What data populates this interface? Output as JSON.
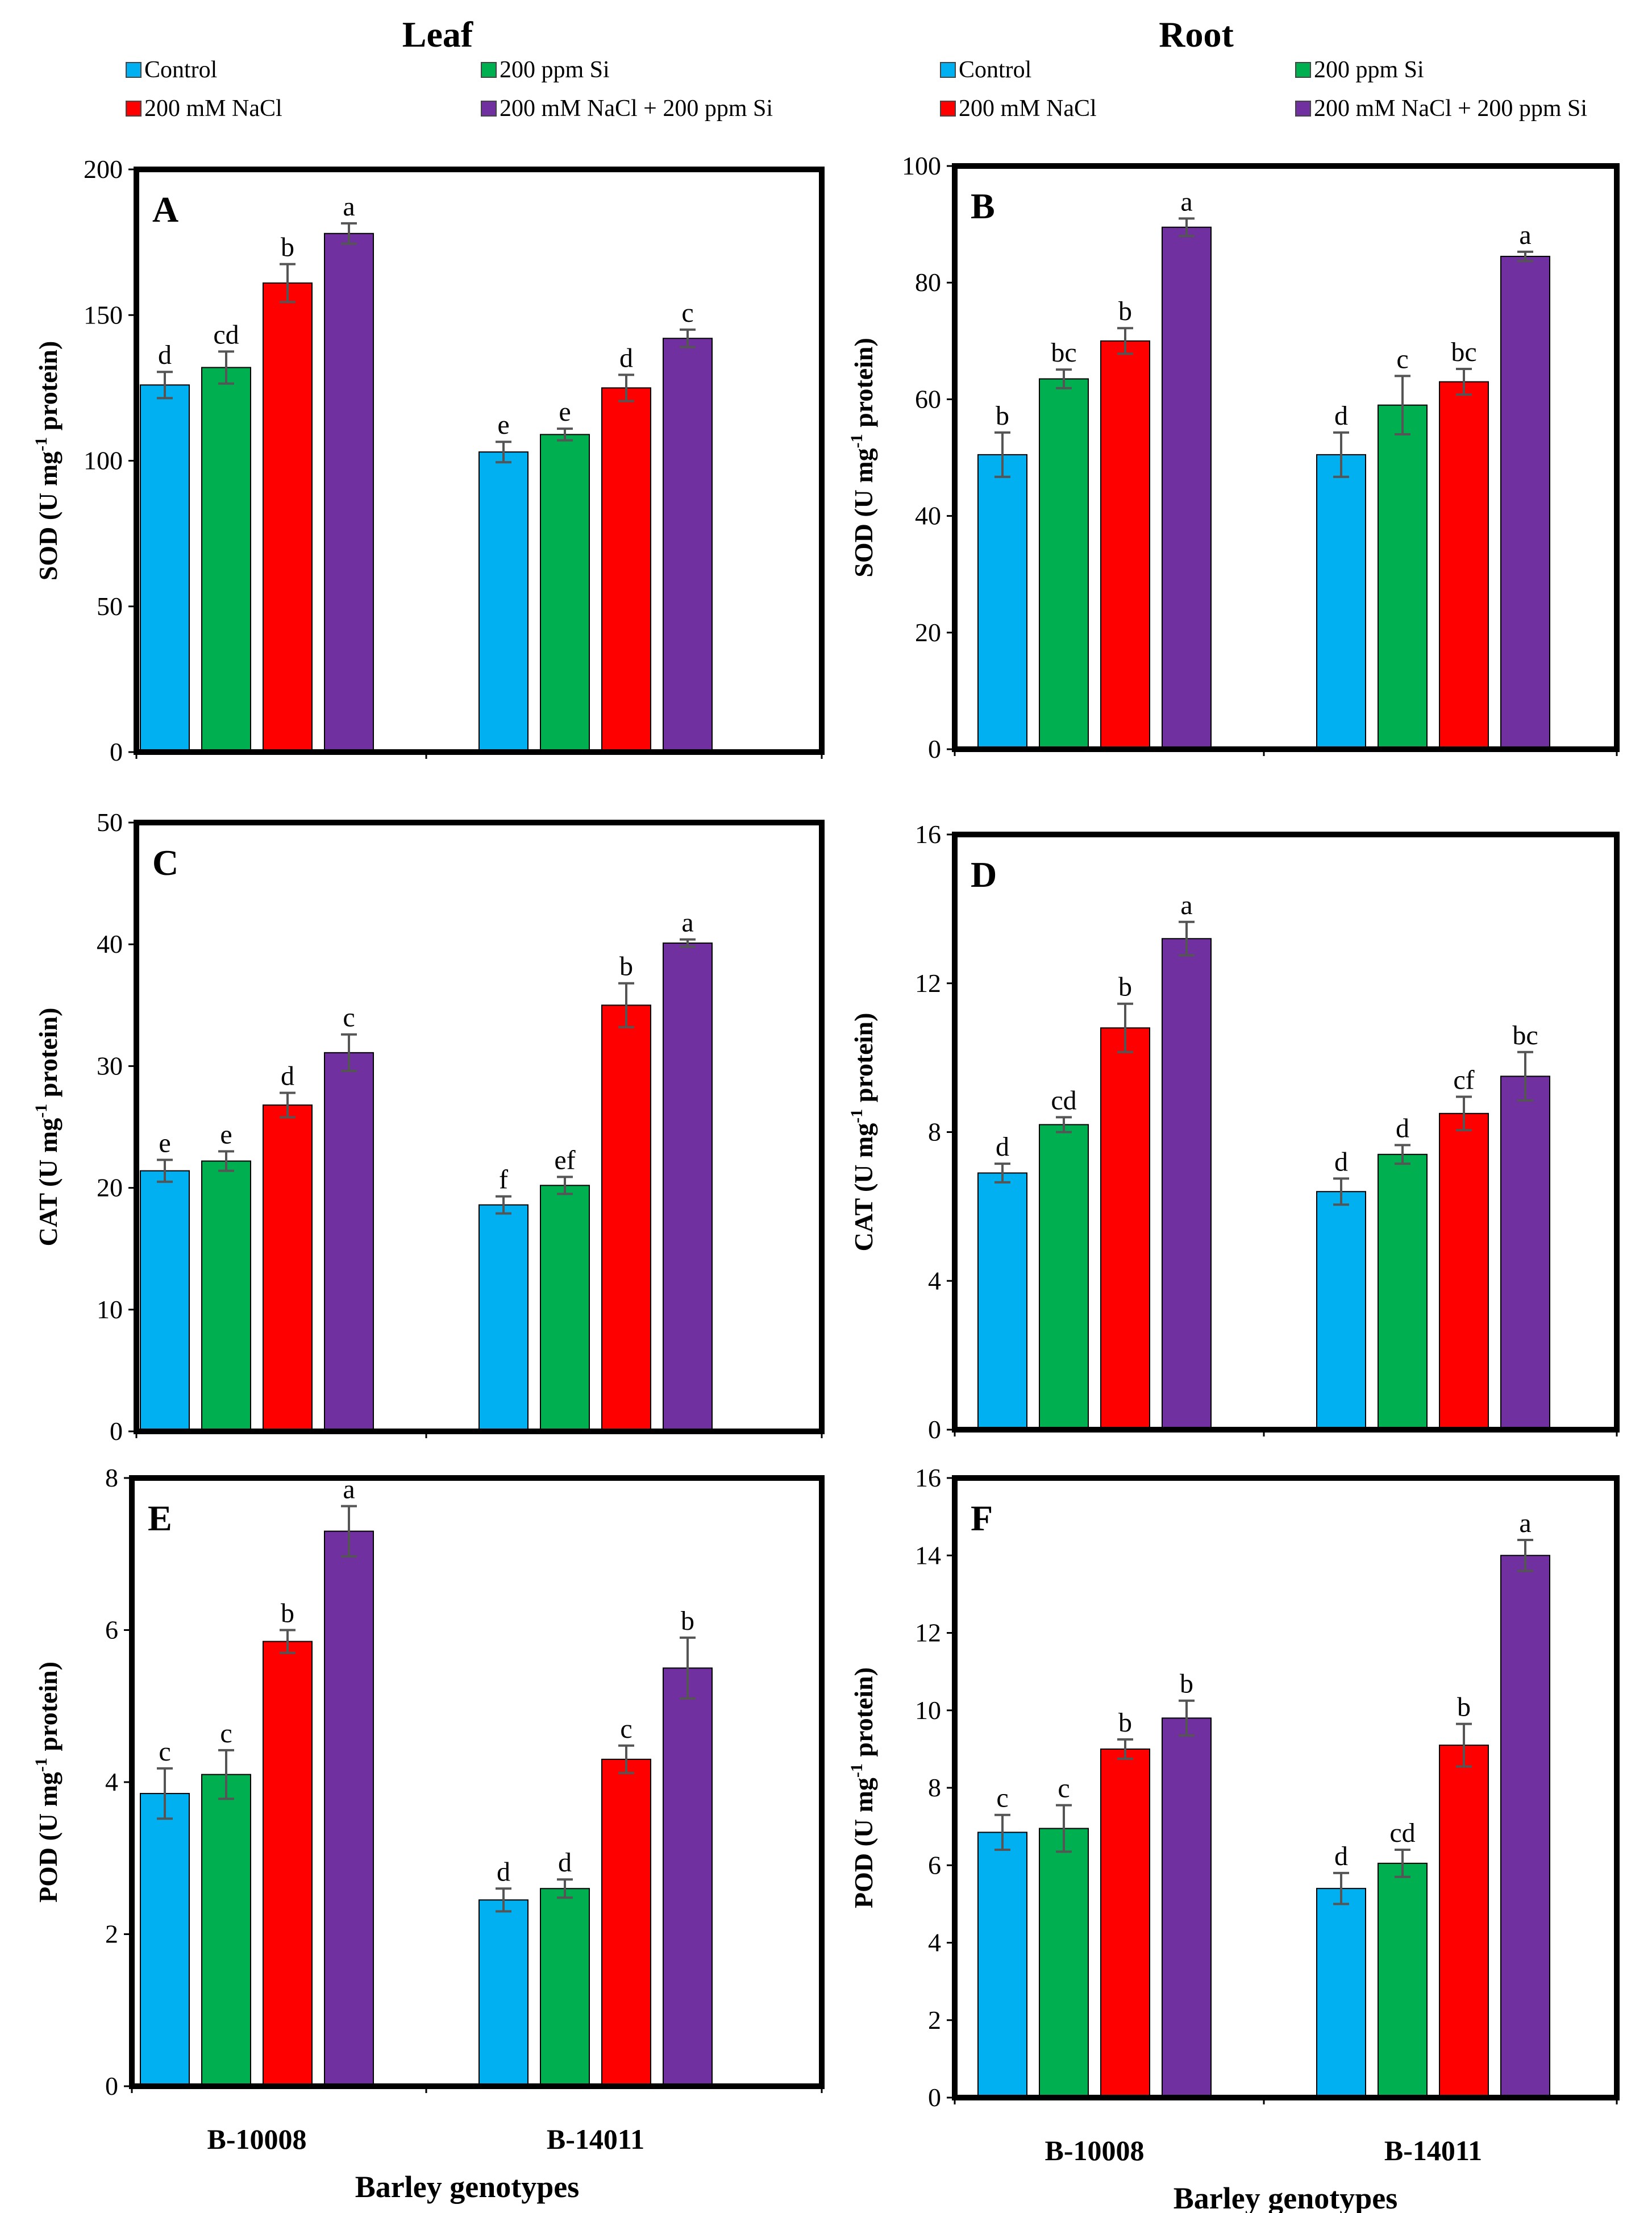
{
  "figure": {
    "column_titles": [
      "Leaf",
      "Root"
    ],
    "x_axis_title": "Barley genotypes",
    "legend": [
      {
        "label": "Control",
        "color": "#00B0F0"
      },
      {
        "label": "200 ppm Si",
        "color": "#00B050"
      },
      {
        "label": "200 mM NaCl",
        "color": "#FF0000"
      },
      {
        "label": "200 mM NaCl + 200 ppm Si",
        "color": "#7030A0"
      }
    ]
  },
  "chart_data": [
    {
      "panel": "A",
      "type": "bar",
      "ylabel_base": "SOD (U mg",
      "ylabel_sup": "-1",
      "ylabel_tail": " protein)",
      "ylim": [
        0,
        200
      ],
      "ticks": [
        0,
        50,
        100,
        150,
        200
      ],
      "categories": [
        "B-10008",
        "B-14011"
      ],
      "show_category_labels": false,
      "series": [
        {
          "name": "Control",
          "values": [
            126,
            103
          ],
          "errors": [
            4.5,
            3.5
          ],
          "letters": [
            "d",
            "e"
          ]
        },
        {
          "name": "200 ppm Si",
          "values": [
            132,
            109
          ],
          "errors": [
            5.5,
            2
          ],
          "letters": [
            "cd",
            "e"
          ]
        },
        {
          "name": "200 mM NaCl",
          "values": [
            161,
            125
          ],
          "errors": [
            6.5,
            4.5
          ],
          "letters": [
            "b",
            "d"
          ]
        },
        {
          "name": "200 mM NaCl + 200 ppm Si",
          "values": [
            178,
            142
          ],
          "errors": [
            3.5,
            3
          ],
          "letters": [
            "a",
            "c"
          ]
        }
      ]
    },
    {
      "panel": "B",
      "type": "bar",
      "ylabel_base": "SOD (U mg",
      "ylabel_sup": "-1",
      "ylabel_tail": " protein)",
      "ylim": [
        0,
        100
      ],
      "ticks": [
        0,
        20,
        40,
        60,
        80,
        100
      ],
      "categories": [
        "B-10008",
        "B-14011"
      ],
      "show_category_labels": false,
      "series": [
        {
          "name": "Control",
          "values": [
            50.5,
            50.5
          ],
          "errors": [
            3.8,
            3.8
          ],
          "letters": [
            "b",
            "d"
          ]
        },
        {
          "name": "200 ppm Si",
          "values": [
            63.5,
            59
          ],
          "errors": [
            1.6,
            5
          ],
          "letters": [
            "bc",
            "c"
          ]
        },
        {
          "name": "200 mM NaCl",
          "values": [
            70,
            63
          ],
          "errors": [
            2.2,
            2.2
          ],
          "letters": [
            "b",
            "bc"
          ]
        },
        {
          "name": "200 mM NaCl + 200 ppm Si",
          "values": [
            89.5,
            84.5
          ],
          "errors": [
            1.5,
            0.8
          ],
          "letters": [
            "a",
            "a"
          ]
        }
      ]
    },
    {
      "panel": "C",
      "type": "bar",
      "ylabel_base": "CAT (U mg",
      "ylabel_sup": "-1",
      "ylabel_tail": " protein)",
      "ylim": [
        0,
        50
      ],
      "ticks": [
        0,
        10,
        20,
        30,
        40,
        50
      ],
      "categories": [
        "B-10008",
        "B-14011"
      ],
      "show_category_labels": false,
      "series": [
        {
          "name": "Control",
          "values": [
            21.4,
            18.6
          ],
          "errors": [
            0.9,
            0.7
          ],
          "letters": [
            "e",
            "f"
          ]
        },
        {
          "name": "200 ppm Si",
          "values": [
            22.2,
            20.2
          ],
          "errors": [
            0.8,
            0.7
          ],
          "letters": [
            "e",
            "ef"
          ]
        },
        {
          "name": "200 mM NaCl",
          "values": [
            26.8,
            35
          ],
          "errors": [
            1,
            1.8
          ],
          "letters": [
            "d",
            "b"
          ]
        },
        {
          "name": "200 mM NaCl + 200 ppm Si",
          "values": [
            31.1,
            40.1
          ],
          "errors": [
            1.5,
            0.3
          ],
          "letters": [
            "c",
            "a"
          ]
        }
      ]
    },
    {
      "panel": "D",
      "type": "bar",
      "ylabel_base": "CAT (U mg",
      "ylabel_sup": "-1",
      "ylabel_tail": " protein)",
      "ylim": [
        0,
        16
      ],
      "ticks": [
        0,
        4,
        8,
        12,
        16
      ],
      "categories": [
        "B-10008",
        "B-14011"
      ],
      "show_category_labels": false,
      "series": [
        {
          "name": "Control",
          "values": [
            6.9,
            6.4
          ],
          "errors": [
            0.25,
            0.35
          ],
          "letters": [
            "d",
            "d"
          ]
        },
        {
          "name": "200 ppm Si",
          "values": [
            8.2,
            7.4
          ],
          "errors": [
            0.2,
            0.25
          ],
          "letters": [
            "cd",
            "d"
          ]
        },
        {
          "name": "200 mM NaCl",
          "values": [
            10.8,
            8.5
          ],
          "errors": [
            0.65,
            0.45
          ],
          "letters": [
            "b",
            "cf"
          ]
        },
        {
          "name": "200 mM NaCl + 200 ppm Si",
          "values": [
            13.2,
            9.5
          ],
          "errors": [
            0.45,
            0.65
          ],
          "letters": [
            "a",
            "bc"
          ]
        }
      ]
    },
    {
      "panel": "E",
      "type": "bar",
      "ylabel_base": "POD  (U mg",
      "ylabel_sup": "-1",
      "ylabel_tail": " protein)",
      "ylim": [
        0,
        8
      ],
      "ticks": [
        0,
        2,
        4,
        6,
        8
      ],
      "categories": [
        "B-10008",
        "B-14011"
      ],
      "show_category_labels": true,
      "series": [
        {
          "name": "Control",
          "values": [
            3.85,
            2.45
          ],
          "errors": [
            0.33,
            0.15
          ],
          "letters": [
            "c",
            "d"
          ]
        },
        {
          "name": "200 ppm Si",
          "values": [
            4.1,
            2.6
          ],
          "errors": [
            0.32,
            0.12
          ],
          "letters": [
            "c",
            "d"
          ]
        },
        {
          "name": "200 mM NaCl",
          "values": [
            5.85,
            4.3
          ],
          "errors": [
            0.15,
            0.18
          ],
          "letters": [
            "b",
            "c"
          ]
        },
        {
          "name": "200 mM NaCl + 200 ppm Si",
          "values": [
            7.3,
            5.5
          ],
          "errors": [
            0.33,
            0.4
          ],
          "letters": [
            "a",
            "b"
          ]
        }
      ]
    },
    {
      "panel": "F",
      "type": "bar",
      "ylabel_base": "POD  (U mg",
      "ylabel_sup": "-1",
      "ylabel_tail": " protein)",
      "ylim": [
        0,
        16
      ],
      "ticks": [
        0,
        2,
        4,
        6,
        8,
        10,
        12,
        14,
        16
      ],
      "categories": [
        "B-10008",
        "B-14011"
      ],
      "show_category_labels": true,
      "series": [
        {
          "name": "Control",
          "values": [
            6.85,
            5.4
          ],
          "errors": [
            0.45,
            0.4
          ],
          "letters": [
            "c",
            "d"
          ]
        },
        {
          "name": "200 ppm Si",
          "values": [
            6.95,
            6.05
          ],
          "errors": [
            0.6,
            0.35
          ],
          "letters": [
            "c",
            "cd"
          ]
        },
        {
          "name": "200 mM NaCl",
          "values": [
            9,
            9.1
          ],
          "errors": [
            0.25,
            0.55
          ],
          "letters": [
            "b",
            "b"
          ]
        },
        {
          "name": "200 mM NaCl + 200 ppm Si",
          "values": [
            9.8,
            14
          ],
          "errors": [
            0.45,
            0.4
          ],
          "letters": [
            "b",
            "a"
          ]
        }
      ]
    }
  ]
}
